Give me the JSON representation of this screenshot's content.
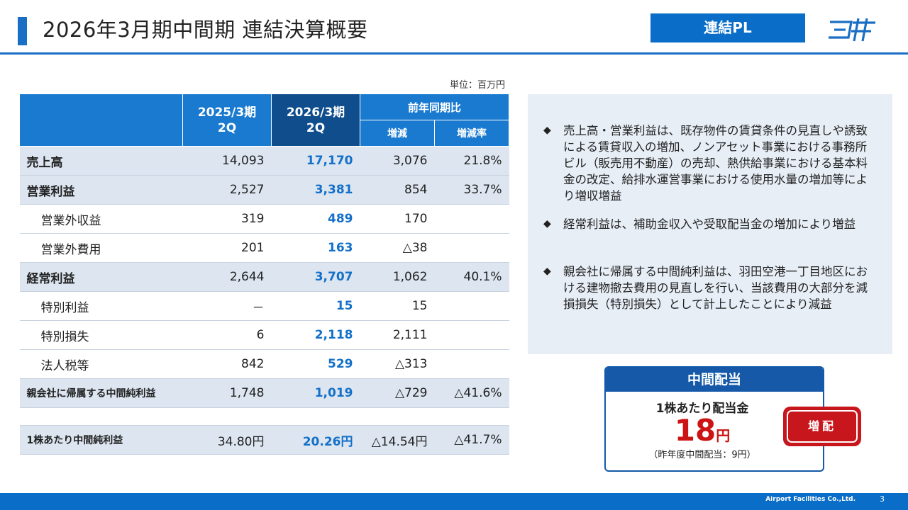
{
  "header": {
    "title": "2026年3月期中間期 連結決算概要",
    "badge": "連結PL",
    "logo_icon": "company-logo-icon"
  },
  "table": {
    "unit_label": "単位：百万円",
    "headers": {
      "prev_period": "2025/3期",
      "prev_sub": "2Q",
      "cur_period": "2026/3期",
      "cur_sub": "2Q",
      "yoy": "前年同期比",
      "change": "増減",
      "change_rate": "増減率"
    },
    "rows": [
      {
        "label": "売上高",
        "prev": "14,093",
        "cur": "17,170",
        "change": "3,076",
        "rate": "21.8%"
      },
      {
        "label": "営業利益",
        "prev": "2,527",
        "cur": "3,381",
        "change": "854",
        "rate": "33.7%"
      },
      {
        "label": "営業外収益",
        "prev": "319",
        "cur": "489",
        "change": "170",
        "rate": ""
      },
      {
        "label": "営業外費用",
        "prev": "201",
        "cur": "163",
        "change": "△38",
        "rate": ""
      },
      {
        "label": "経常利益",
        "prev": "2,644",
        "cur": "3,707",
        "change": "1,062",
        "rate": "40.1%"
      },
      {
        "label": "特別利益",
        "prev": "－",
        "cur": "15",
        "change": "15",
        "rate": ""
      },
      {
        "label": "特別損失",
        "prev": "6",
        "cur": "2,118",
        "change": "2,111",
        "rate": ""
      },
      {
        "label": "法人税等",
        "prev": "842",
        "cur": "529",
        "change": "△313",
        "rate": ""
      },
      {
        "label": "親会社に帰属する中間純利益",
        "prev": "1,748",
        "cur": "1,019",
        "change": "△729",
        "rate": "△41.6%"
      },
      {
        "label": "1株あたり中間純利益",
        "prev": "34.80円",
        "cur": "20.26円",
        "change": "△14.54円",
        "rate": "△41.7%"
      }
    ]
  },
  "notes": {
    "bullet_symbol": "◆",
    "items": [
      "売上高・営業利益は、既存物件の賃貸条件の見直しや誘致による賃貸収入の増加、ノンアセット事業における事務所ビル（販売用不動産）の売却、熱供給事業における基本料金の改定、給排水運営事業における使用水量の増加等により増収増益",
      "経常利益は、補助金収入や受取配当金の増加により増益",
      "親会社に帰属する中間純利益は、羽田空港一丁目地区における建物撤去費用の見直しを行い、当該費用の大部分を減損損失（特別損失）として計上したことにより減益"
    ]
  },
  "dividend": {
    "title": "中間配当",
    "label": "1株あたり配当金",
    "amount": "18",
    "yen": "円",
    "note": "（昨年度中間配当：9円）",
    "increase_label": "増配"
  },
  "footer": {
    "company": "Airport Facilities Co.,Ltd.",
    "page": "3"
  },
  "colors": {
    "accent": "#1a6fc4",
    "header_dark": "#0f4d8c",
    "value_blue": "#1470c8",
    "shade": "#dce5f0",
    "alert_red": "#c8161d"
  }
}
